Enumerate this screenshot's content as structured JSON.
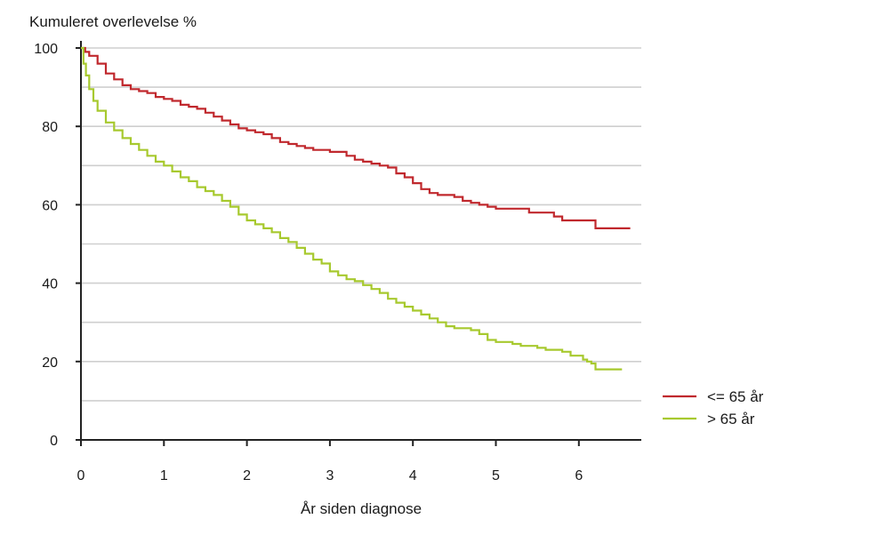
{
  "chart_data": {
    "type": "line",
    "title": "",
    "ylabel": "Kumuleret overlevelse %",
    "xlabel": "År siden diagnose",
    "xlim": [
      0,
      6.75
    ],
    "ylim": [
      0,
      100
    ],
    "x_ticks": [
      0,
      1,
      2,
      3,
      4,
      5,
      6
    ],
    "x_tick_labels": [
      "0",
      "1",
      "2",
      "3",
      "4",
      "5",
      "6"
    ],
    "y_ticks": [
      0,
      20,
      40,
      60,
      80,
      100
    ],
    "y_tick_labels": [
      "0",
      "20",
      "40",
      "60",
      "80",
      "100"
    ],
    "y_gridlines": [
      10,
      20,
      30,
      40,
      50,
      60,
      70,
      80,
      90,
      100
    ],
    "grid": true,
    "legend_position": "right-bottom",
    "series": [
      {
        "name": "<= 65 år",
        "color": "#c0282d",
        "x": [
          0,
          0.05,
          0.1,
          0.2,
          0.3,
          0.4,
          0.5,
          0.6,
          0.7,
          0.8,
          0.9,
          1.0,
          1.1,
          1.2,
          1.3,
          1.4,
          1.5,
          1.6,
          1.7,
          1.8,
          1.9,
          2.0,
          2.1,
          2.2,
          2.3,
          2.4,
          2.5,
          2.6,
          2.7,
          2.8,
          2.9,
          3.0,
          3.1,
          3.2,
          3.3,
          3.4,
          3.5,
          3.6,
          3.7,
          3.8,
          3.9,
          4.0,
          4.1,
          4.2,
          4.3,
          4.4,
          4.5,
          4.6,
          4.7,
          4.8,
          4.9,
          5.0,
          5.1,
          5.2,
          5.3,
          5.4,
          5.5,
          5.6,
          5.7,
          5.8,
          5.9,
          6.0,
          6.1,
          6.2,
          6.3,
          6.4,
          6.5,
          6.62
        ],
        "values": [
          100,
          99,
          98,
          96,
          93.5,
          92,
          90.5,
          89.5,
          89,
          88.5,
          87.5,
          87,
          86.5,
          85.5,
          85,
          84.5,
          83.5,
          82.5,
          81.5,
          80.5,
          79.5,
          79,
          78.5,
          78,
          77,
          76,
          75.5,
          75,
          74.5,
          74,
          74,
          73.5,
          73.5,
          72.5,
          71.5,
          71,
          70.5,
          70,
          69.5,
          68,
          67,
          65.5,
          64,
          63,
          62.5,
          62.5,
          62,
          61,
          60.5,
          60,
          59.5,
          59,
          59,
          59,
          59,
          58,
          58,
          58,
          57,
          56,
          56,
          56,
          56,
          54,
          54,
          54,
          54,
          54
        ]
      },
      {
        "name": "> 65 år",
        "color": "#a7c92e",
        "x": [
          0,
          0.03,
          0.06,
          0.1,
          0.15,
          0.2,
          0.3,
          0.4,
          0.5,
          0.6,
          0.7,
          0.8,
          0.9,
          1.0,
          1.1,
          1.2,
          1.3,
          1.4,
          1.5,
          1.6,
          1.7,
          1.8,
          1.9,
          2.0,
          2.1,
          2.2,
          2.3,
          2.4,
          2.5,
          2.6,
          2.7,
          2.8,
          2.9,
          3.0,
          3.1,
          3.2,
          3.3,
          3.4,
          3.5,
          3.6,
          3.7,
          3.8,
          3.9,
          4.0,
          4.1,
          4.2,
          4.3,
          4.4,
          4.5,
          4.6,
          4.7,
          4.8,
          4.9,
          5.0,
          5.1,
          5.2,
          5.3,
          5.4,
          5.5,
          5.6,
          5.7,
          5.8,
          5.9,
          6.0,
          6.05,
          6.1,
          6.15,
          6.2,
          6.3,
          6.4,
          6.5,
          6.52
        ],
        "values": [
          100,
          96,
          93,
          89.5,
          86.5,
          84,
          81,
          79,
          77,
          75.5,
          74,
          72.5,
          71,
          70,
          68.5,
          67,
          66,
          64.5,
          63.5,
          62.5,
          61,
          59.5,
          57.5,
          56,
          55,
          54,
          53,
          51.5,
          50.5,
          49,
          47.5,
          46,
          45,
          43,
          42,
          41,
          40.5,
          39.5,
          38.5,
          37.5,
          36,
          35,
          34,
          33,
          32,
          31,
          30,
          29,
          28.5,
          28.5,
          28,
          27,
          25.5,
          25,
          25,
          24.5,
          24,
          24,
          23.5,
          23,
          23,
          22.5,
          21.5,
          21.5,
          20.5,
          20,
          19.5,
          18,
          18,
          18,
          18,
          18
        ]
      }
    ]
  }
}
